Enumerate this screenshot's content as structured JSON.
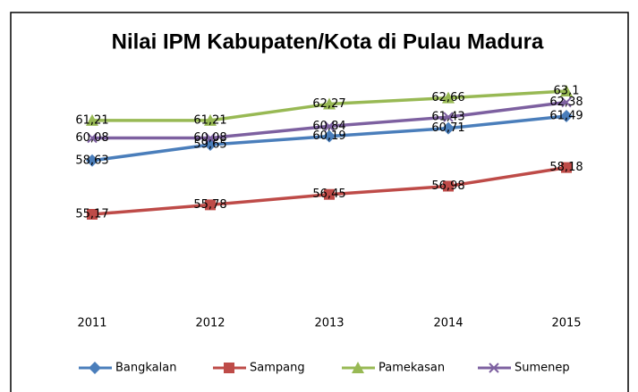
{
  "chart_data": {
    "type": "line",
    "title": "Nilai IPM Kabupaten/Kota di Pulau Madura",
    "categories": [
      "2011",
      "2012",
      "2013",
      "2014",
      "2015"
    ],
    "series": [
      {
        "name": "Bangkalan",
        "color": "#4a7ebb",
        "marker": "diamond",
        "values": [
          58.63,
          59.65,
          60.19,
          60.71,
          61.49
        ],
        "value_labels": [
          "58,63",
          "59,65",
          "60,19",
          "60,71",
          "61,49"
        ]
      },
      {
        "name": "Sampang",
        "color": "#be4b48",
        "marker": "square",
        "values": [
          55.17,
          55.78,
          56.45,
          56.98,
          58.18
        ],
        "value_labels": [
          "55,17",
          "55,78",
          "56,45",
          "56,98",
          "58,18"
        ]
      },
      {
        "name": "Pamekasan",
        "color": "#98b954",
        "marker": "triangle",
        "values": [
          61.21,
          61.21,
          62.27,
          62.66,
          63.1
        ],
        "value_labels": [
          "61,21",
          "61,21",
          "62,27",
          "62,66",
          "63,1"
        ]
      },
      {
        "name": "Sumenep",
        "color": "#7d60a0",
        "marker": "x",
        "values": [
          60.08,
          60.08,
          60.84,
          61.43,
          62.38
        ],
        "value_labels": [
          "60,08",
          "60,08",
          "60,84",
          "61,43",
          "62,38"
        ]
      }
    ],
    "legend": "bottom"
  }
}
